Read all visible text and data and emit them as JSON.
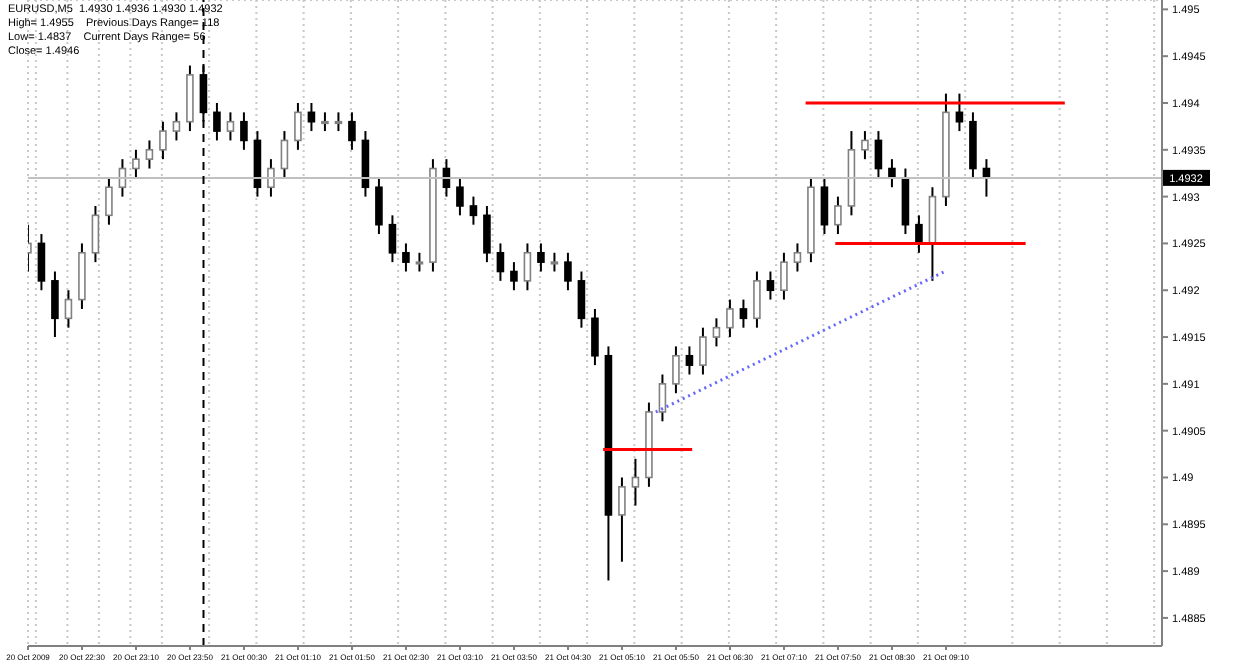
{
  "chart_data": {
    "type": "candlestick",
    "annotations": [
      "EURUSD,M5  1.4930 1.4936 1.4930 1.4932",
      "High= 1.4955    Previous Days Range= 118",
      "Low= 1.4837    Current Days Range= 56",
      "Close= 1.4946"
    ],
    "x": [
      "2009-10-20T21:50",
      "2009-10-20T22:00",
      "2009-10-20T22:10",
      "2009-10-20T22:20",
      "2009-10-20T22:30",
      "2009-10-20T22:40",
      "2009-10-20T22:50",
      "2009-10-20T23:00",
      "2009-10-20T23:10",
      "2009-10-20T23:20",
      "2009-10-20T23:30",
      "2009-10-20T23:40",
      "2009-10-20T23:50",
      "2009-10-21T00:00",
      "2009-10-21T00:10",
      "2009-10-21T00:20",
      "2009-10-21T00:30",
      "2009-10-21T00:40",
      "2009-10-21T00:50",
      "2009-10-21T01:00",
      "2009-10-21T01:10",
      "2009-10-21T01:20",
      "2009-10-21T01:30",
      "2009-10-21T01:40",
      "2009-10-21T01:50",
      "2009-10-21T02:00",
      "2009-10-21T02:10",
      "2009-10-21T02:20",
      "2009-10-21T02:30",
      "2009-10-21T02:40",
      "2009-10-21T02:50",
      "2009-10-21T03:00",
      "2009-10-21T03:10",
      "2009-10-21T03:20",
      "2009-10-21T03:30",
      "2009-10-21T03:40",
      "2009-10-21T03:50",
      "2009-10-21T04:00",
      "2009-10-21T04:10",
      "2009-10-21T04:20",
      "2009-10-21T04:30",
      "2009-10-21T04:40",
      "2009-10-21T04:50",
      "2009-10-21T05:00",
      "2009-10-21T05:10",
      "2009-10-21T05:20",
      "2009-10-21T05:30",
      "2009-10-21T05:40",
      "2009-10-21T05:50",
      "2009-10-21T06:00",
      "2009-10-21T06:10",
      "2009-10-21T06:20",
      "2009-10-21T06:30",
      "2009-10-21T06:40",
      "2009-10-21T06:50",
      "2009-10-21T07:00",
      "2009-10-21T07:10",
      "2009-10-21T07:20",
      "2009-10-21T07:30",
      "2009-10-21T07:40",
      "2009-10-21T07:50",
      "2009-10-21T08:00",
      "2009-10-21T08:10",
      "2009-10-21T08:20",
      "2009-10-21T08:30",
      "2009-10-21T08:40",
      "2009-10-21T08:50",
      "2009-10-21T09:00",
      "2009-10-21T09:10",
      "2009-10-21T09:20",
      "2009-10-21T09:30",
      "2009-10-21T09:40"
    ],
    "ohlc": [
      [
        1.4924,
        1.4927,
        1.4922,
        1.4925
      ],
      [
        1.4925,
        1.4926,
        1.492,
        1.4921
      ],
      [
        1.4921,
        1.4922,
        1.4915,
        1.4917
      ],
      [
        1.4917,
        1.492,
        1.4916,
        1.4919
      ],
      [
        1.4919,
        1.4925,
        1.4918,
        1.4924
      ],
      [
        1.4924,
        1.4929,
        1.4923,
        1.4928
      ],
      [
        1.4928,
        1.4932,
        1.4927,
        1.4931
      ],
      [
        1.4931,
        1.4934,
        1.493,
        1.4933
      ],
      [
        1.4933,
        1.4935,
        1.4932,
        1.4934
      ],
      [
        1.4934,
        1.4936,
        1.4933,
        1.4935
      ],
      [
        1.4935,
        1.4938,
        1.4934,
        1.4937
      ],
      [
        1.4937,
        1.4939,
        1.4936,
        1.4938
      ],
      [
        1.4938,
        1.4944,
        1.4937,
        1.4943
      ],
      [
        1.4943,
        1.4944,
        1.4938,
        1.4939
      ],
      [
        1.4939,
        1.494,
        1.4936,
        1.4937
      ],
      [
        1.4937,
        1.4939,
        1.4936,
        1.4938
      ],
      [
        1.4938,
        1.4939,
        1.4935,
        1.4936
      ],
      [
        1.4936,
        1.4937,
        1.493,
        1.4931
      ],
      [
        1.4931,
        1.4934,
        1.493,
        1.4933
      ],
      [
        1.4933,
        1.4937,
        1.4932,
        1.4936
      ],
      [
        1.4936,
        1.494,
        1.4935,
        1.4939
      ],
      [
        1.4939,
        1.494,
        1.4937,
        1.4938
      ],
      [
        1.4938,
        1.4939,
        1.4937,
        1.4938
      ],
      [
        1.4938,
        1.4939,
        1.4937,
        1.4938
      ],
      [
        1.4938,
        1.4939,
        1.4935,
        1.4936
      ],
      [
        1.4936,
        1.4937,
        1.493,
        1.4931
      ],
      [
        1.4931,
        1.4932,
        1.4926,
        1.4927
      ],
      [
        1.4927,
        1.4928,
        1.4923,
        1.4924
      ],
      [
        1.4924,
        1.4925,
        1.4922,
        1.4923
      ],
      [
        1.4923,
        1.4924,
        1.4922,
        1.4923
      ],
      [
        1.4923,
        1.4934,
        1.4922,
        1.4933
      ],
      [
        1.4933,
        1.4934,
        1.493,
        1.4931
      ],
      [
        1.4931,
        1.4932,
        1.4928,
        1.4929
      ],
      [
        1.4929,
        1.493,
        1.4927,
        1.4928
      ],
      [
        1.4928,
        1.4929,
        1.4923,
        1.4924
      ],
      [
        1.4924,
        1.4925,
        1.4921,
        1.4922
      ],
      [
        1.4922,
        1.4923,
        1.492,
        1.4921
      ],
      [
        1.4921,
        1.4925,
        1.492,
        1.4924
      ],
      [
        1.4924,
        1.4925,
        1.4922,
        1.4923
      ],
      [
        1.4923,
        1.4924,
        1.4922,
        1.4923
      ],
      [
        1.4923,
        1.4924,
        1.492,
        1.4921
      ],
      [
        1.4921,
        1.4922,
        1.4916,
        1.4917
      ],
      [
        1.4917,
        1.4918,
        1.4912,
        1.4913
      ],
      [
        1.4913,
        1.4914,
        1.4889,
        1.4896
      ],
      [
        1.4896,
        1.49,
        1.4891,
        1.4899
      ],
      [
        1.4899,
        1.4902,
        1.4897,
        1.49
      ],
      [
        1.49,
        1.4908,
        1.4899,
        1.4907
      ],
      [
        1.4907,
        1.4911,
        1.4906,
        1.491
      ],
      [
        1.491,
        1.4914,
        1.4909,
        1.4913
      ],
      [
        1.4913,
        1.4914,
        1.4911,
        1.4912
      ],
      [
        1.4912,
        1.4916,
        1.4911,
        1.4915
      ],
      [
        1.4915,
        1.4917,
        1.4914,
        1.4916
      ],
      [
        1.4916,
        1.4919,
        1.4915,
        1.4918
      ],
      [
        1.4918,
        1.4919,
        1.4916,
        1.4917
      ],
      [
        1.4917,
        1.4922,
        1.4916,
        1.4921
      ],
      [
        1.4921,
        1.4922,
        1.4919,
        1.492
      ],
      [
        1.492,
        1.4924,
        1.4919,
        1.4923
      ],
      [
        1.4923,
        1.4925,
        1.4922,
        1.4924
      ],
      [
        1.4924,
        1.4932,
        1.4923,
        1.4931
      ],
      [
        1.4931,
        1.4932,
        1.4926,
        1.4927
      ],
      [
        1.4927,
        1.493,
        1.4926,
        1.4929
      ],
      [
        1.4929,
        1.4937,
        1.4928,
        1.4935
      ],
      [
        1.4935,
        1.4937,
        1.4934,
        1.4936
      ],
      [
        1.4936,
        1.4937,
        1.4932,
        1.4933
      ],
      [
        1.4933,
        1.4934,
        1.4931,
        1.4932
      ],
      [
        1.4932,
        1.4933,
        1.4926,
        1.4927
      ],
      [
        1.4927,
        1.4928,
        1.4924,
        1.4925
      ],
      [
        1.4925,
        1.4931,
        1.4921,
        1.493
      ],
      [
        1.493,
        1.4941,
        1.4929,
        1.4939
      ],
      [
        1.4939,
        1.4941,
        1.4937,
        1.4938
      ],
      [
        1.4938,
        1.4939,
        1.4932,
        1.4933
      ],
      [
        1.4933,
        1.4934,
        1.493,
        1.4932
      ]
    ],
    "series": [
      {
        "type": "line",
        "color": "#ff0000",
        "x": [
          "2009-10-21T07:26",
          "2009-10-21T10:38"
        ],
        "values": [
          1.494,
          1.494
        ]
      },
      {
        "type": "line",
        "color": "#ff0000",
        "x": [
          "2009-10-21T07:48",
          "2009-10-21T10:09"
        ],
        "values": [
          1.4925,
          1.4925
        ]
      },
      {
        "type": "line",
        "color": "#ff0000",
        "x": [
          "2009-10-21T04:56",
          "2009-10-21T06:02"
        ],
        "values": [
          1.4903,
          1.4903
        ]
      },
      {
        "type": "line",
        "color": "#6666ff",
        "line_style": "dotted",
        "x": [
          "2009-10-21T05:35",
          "2009-10-21T09:09"
        ],
        "values": [
          1.4907,
          1.4922
        ]
      }
    ],
    "ref_lines": [
      {
        "axis": "y",
        "value": 1.4932,
        "label": "1.4932",
        "color": "#c0c0c0"
      },
      {
        "axis": "x",
        "value": "2009-10-21T00:00",
        "color": "#000000",
        "line_style": "dashed"
      }
    ],
    "xlim": [
      "2009-10-20T21:50",
      "2009-10-21T11:50"
    ],
    "ylim": [
      1.4882,
      1.4951
    ],
    "xticks": [
      {
        "value": "2009-10-20T21:50",
        "label": "20 Oct 2009"
      },
      {
        "value": "2009-10-20T22:30",
        "label": "20 Oct 22:30"
      },
      {
        "value": "2009-10-20T23:10",
        "label": "20 Oct 23:10"
      },
      {
        "value": "2009-10-20T23:50",
        "label": "20 Oct 23:50"
      },
      {
        "value": "2009-10-21T00:30",
        "label": "21 Oct 00:30"
      },
      {
        "value": "2009-10-21T01:10",
        "label": "21 Oct 01:10"
      },
      {
        "value": "2009-10-21T01:50",
        "label": "21 Oct 01:50"
      },
      {
        "value": "2009-10-21T02:30",
        "label": "21 Oct 02:30"
      },
      {
        "value": "2009-10-21T03:10",
        "label": "21 Oct 03:10"
      },
      {
        "value": "2009-10-21T03:50",
        "label": "21 Oct 03:50"
      },
      {
        "value": "2009-10-21T04:30",
        "label": "21 Oct 04:30"
      },
      {
        "value": "2009-10-21T05:10",
        "label": "21 Oct 05:10"
      },
      {
        "value": "2009-10-21T05:50",
        "label": "21 Oct 05:50"
      },
      {
        "value": "2009-10-21T06:30",
        "label": "21 Oct 06:30"
      },
      {
        "value": "2009-10-21T07:10",
        "label": "21 Oct 07:10"
      },
      {
        "value": "2009-10-21T07:50",
        "label": "21 Oct 07:50"
      },
      {
        "value": "2009-10-21T08:30",
        "label": "21 Oct 08:30"
      },
      {
        "value": "2009-10-21T09:10",
        "label": "21 Oct 09:10"
      }
    ],
    "yticks": [
      1.4885,
      1.489,
      1.4895,
      1.49,
      1.4905,
      1.491,
      1.4915,
      1.492,
      1.4925,
      1.493,
      1.4935,
      1.494,
      1.4945,
      1.495
    ],
    "grid": true
  }
}
